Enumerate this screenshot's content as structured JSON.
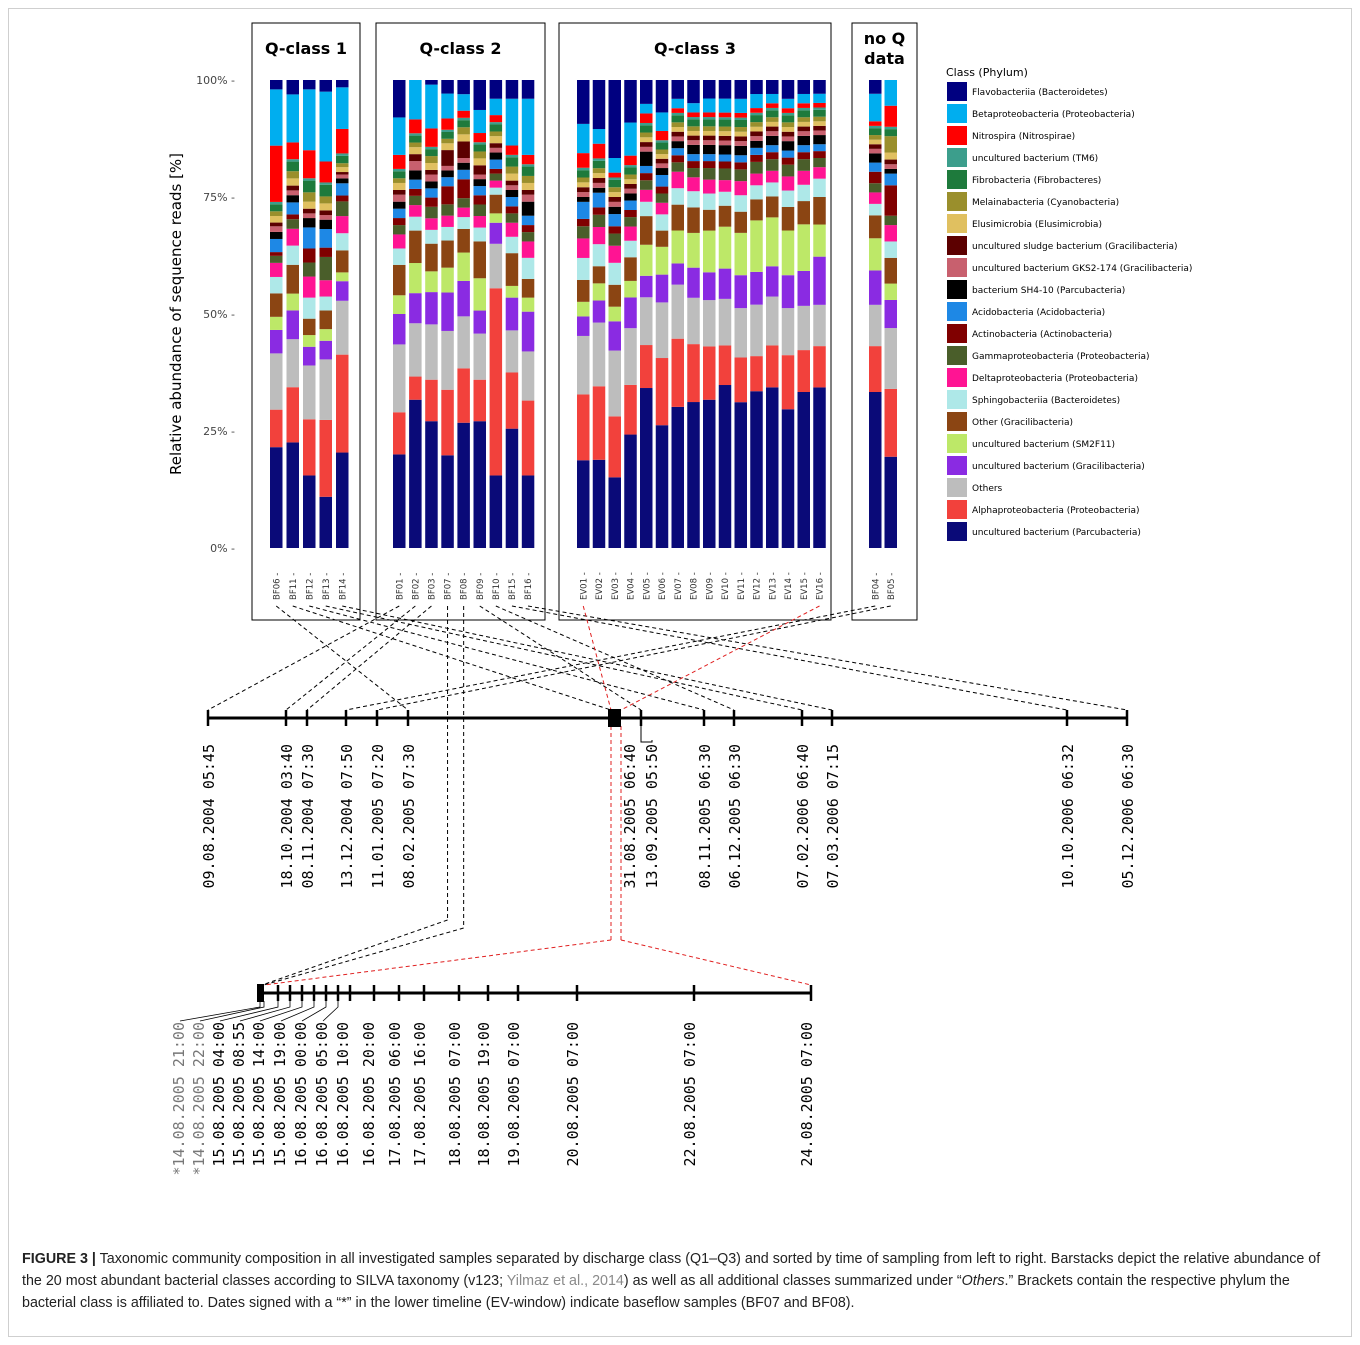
{
  "chart_data": {
    "type": "bar",
    "stacked": true,
    "ylabel": "Relative abundance of sequence reads [%]",
    "yticks": [
      "0%",
      "25%",
      "50%",
      "75%",
      "100%"
    ],
    "ylim": [
      0,
      100
    ],
    "legend_title": "Class (Phylum)",
    "legend_placement": "right",
    "panels": [
      {
        "title": "Q-class 1",
        "samples": [
          "BF06",
          "BF11",
          "BF12",
          "BF13",
          "BF14"
        ]
      },
      {
        "title": "Q-class 2",
        "samples": [
          "BF01",
          "BF02",
          "BF03",
          "BF07",
          "BF08",
          "BF09",
          "BF10",
          "BF15",
          "BF16"
        ]
      },
      {
        "title": "Q-class 3",
        "samples": [
          "EV01",
          "EV02",
          "EV03",
          "EV04",
          "EV05",
          "EV06",
          "EV07",
          "EV08",
          "EV09",
          "EV10",
          "EV11",
          "EV12",
          "EV13",
          "EV14",
          "EV15",
          "EV16"
        ]
      },
      {
        "title": "no Q data",
        "samples": [
          "BF04",
          "BF05"
        ]
      }
    ],
    "classes": [
      {
        "name": "uncultured bacterium (Parcubacteria)",
        "color": "#0a0a78"
      },
      {
        "name": "Alphaproteobacteria (Proteobacteria)",
        "color": "#f2413c"
      },
      {
        "name": "Others",
        "color": "#bdbdbd"
      },
      {
        "name": "uncultured bacterium (Gracilibacteria)",
        "color": "#8a2be2"
      },
      {
        "name": "uncultured bacterium (SM2F11)",
        "color": "#bde868"
      },
      {
        "name": "Other (Gracilibacteria)",
        "color": "#8b4513"
      },
      {
        "name": "Sphingobacteriia (Bacteroidetes)",
        "color": "#aee8e8"
      },
      {
        "name": "Deltaproteobacteria (Proteobacteria)",
        "color": "#ff1493"
      },
      {
        "name": "Gammaproteobacteria (Proteobacteria)",
        "color": "#4a5e2a"
      },
      {
        "name": "Actinobacteria (Actinobacteria)",
        "color": "#800000"
      },
      {
        "name": "Acidobacteria (Acidobacteria)",
        "color": "#1e88e5"
      },
      {
        "name": "bacterium SH4-10 (Parcubacteria)",
        "color": "#000000"
      },
      {
        "name": "uncultured bacterium GKS2-174 (Gracilibacteria)",
        "color": "#c8606e"
      },
      {
        "name": "uncultured sludge bacterium (Gracilibacteria)",
        "color": "#5c0000"
      },
      {
        "name": "Elusimicrobia (Elusimicrobia)",
        "color": "#e0c060"
      },
      {
        "name": "Melainabacteria (Cyanobacteria)",
        "color": "#9a8f2c"
      },
      {
        "name": "Fibrobacteria (Fibrobacteres)",
        "color": "#1e7a3c"
      },
      {
        "name": "uncultured bacterium (TM6)",
        "color": "#3c9e8c"
      },
      {
        "name": "Nitrospira (Nitrospirae)",
        "color": "#ff0000"
      },
      {
        "name": "Betaproteobacteria (Proteobacteria)",
        "color": "#00aeef"
      },
      {
        "name": "Flavobacteriia (Bacteroidetes)",
        "color": "#000080"
      }
    ],
    "series": {
      "BF06": [
        21.5,
        8,
        12,
        5,
        2.8,
        5,
        3.5,
        3,
        1.5,
        0.8,
        2.8,
        1.5,
        1.2,
        0.8,
        1.4,
        1,
        1.5,
        0.5,
        12,
        12,
        2
      ],
      "BF11": [
        22,
        11.5,
        10,
        6,
        3.5,
        6,
        4,
        3.5,
        2,
        1,
        2.5,
        1.5,
        1,
        1,
        1.5,
        1.5,
        2,
        0.5,
        3.5,
        10,
        3
      ],
      "BF12": [
        15.5,
        12,
        11.5,
        4,
        2.5,
        3.5,
        4.5,
        4.5,
        3,
        3,
        4.5,
        2,
        1,
        1,
        1.5,
        2,
        2.5,
        0.5,
        6,
        13,
        2
      ],
      "BF13": [
        11,
        16.5,
        13,
        4,
        2.5,
        4,
        3,
        3.5,
        5,
        2,
        4,
        2,
        1,
        1,
        1.5,
        1.5,
        2.5,
        0.5,
        4.5,
        15,
        2.5
      ],
      "BF14": [
        19.5,
        20,
        11,
        4,
        1.8,
        4.5,
        3.5,
        3.5,
        3,
        1.2,
        2.5,
        1,
        0.8,
        0.5,
        1,
        0.8,
        1.5,
        0.5,
        5,
        8.5,
        1.5
      ],
      "BF01": [
        20,
        9,
        14.5,
        6.5,
        4,
        6.5,
        3.5,
        3,
        2,
        1.5,
        2,
        1.5,
        1.5,
        1,
        1.5,
        1,
        1.5,
        0.5,
        3,
        8,
        8
      ],
      "BF02": [
        32,
        5,
        11.5,
        6.5,
        6.5,
        7,
        3,
        2.5,
        2,
        1.5,
        2,
        2,
        2,
        1.5,
        1.5,
        1,
        1.5,
        0.5,
        3,
        8.5,
        0
      ],
      "BF03": [
        27.5,
        9,
        12,
        7,
        4.5,
        6,
        3,
        2.5,
        2.5,
        2,
        2,
        1.5,
        1.5,
        1,
        1.5,
        1.5,
        1.5,
        0.5,
        4,
        9.5,
        1
      ],
      "BF07": [
        20.5,
        14.5,
        13,
        8.5,
        5.5,
        6,
        3,
        2.5,
        2.5,
        4,
        2,
        1.5,
        1,
        3.5,
        1.5,
        1,
        1.5,
        0.5,
        2.5,
        5.5,
        3
      ],
      "BF08": [
        26.5,
        11.5,
        11,
        7.5,
        6,
        5,
        2.5,
        2,
        2,
        4,
        2,
        1.5,
        1,
        3.5,
        1.5,
        1.5,
        1.5,
        0.5,
        1.5,
        3.5,
        3
      ],
      "BF09": [
        27.5,
        9,
        10,
        5,
        7,
        8,
        3,
        2.5,
        2.5,
        2,
        2,
        1.5,
        1,
        2,
        1.5,
        1.5,
        1.5,
        0.5,
        2,
        5,
        6.5
      ],
      "BF10": [
        15.5,
        40,
        9.5,
        4.5,
        2,
        4,
        1.5,
        1.5,
        1.5,
        1,
        2,
        1.5,
        1,
        1,
        1.5,
        1,
        1.5,
        0.5,
        1.5,
        3.5,
        4
      ],
      "BF15": [
        25.5,
        12,
        9,
        7,
        2.5,
        7,
        3.5,
        3,
        2,
        1.5,
        2,
        1.5,
        1,
        1,
        1.5,
        1.5,
        2,
        0.5,
        2,
        10,
        4
      ],
      "BF16": [
        15.5,
        16,
        10.5,
        8.5,
        3,
        4,
        4.5,
        3.5,
        2,
        1.5,
        2,
        3,
        1.5,
        1,
        1.5,
        1.5,
        2,
        0.5,
        2,
        12,
        4
      ],
      "EV01": [
        18,
        13.5,
        12,
        4,
        3,
        4.5,
        4.5,
        4,
        2.5,
        1.5,
        3.5,
        1,
        1,
        1,
        1,
        1,
        1.5,
        0.5,
        3,
        6,
        9
      ],
      "EV02": [
        18,
        15,
        13,
        4.5,
        3.5,
        3.5,
        4.5,
        3.5,
        2.5,
        1.5,
        3,
        1,
        1,
        1,
        1,
        1,
        1.5,
        0.5,
        3,
        3,
        10
      ],
      "EV03": [
        14.5,
        12.5,
        13.5,
        6,
        3,
        4.5,
        4.5,
        3.5,
        2.5,
        1.5,
        2.5,
        1.5,
        1,
        1,
        1,
        1,
        1.5,
        0.5,
        1,
        3,
        16
      ],
      "EV04": [
        24,
        10.5,
        12,
        6.5,
        3.5,
        5,
        3.5,
        3,
        2,
        1.5,
        2,
        1.5,
        1,
        1,
        1,
        1,
        1.5,
        0.5,
        2,
        7,
        9
      ],
      "EV05": [
        33.5,
        9,
        10,
        4.5,
        6.5,
        6,
        3,
        2.5,
        2,
        1.5,
        1.5,
        3,
        1,
        1,
        1,
        1,
        1.5,
        0.5,
        2,
        2,
        5
      ],
      "EV06": [
        26.5,
        14.5,
        12,
        6,
        6,
        3.5,
        3.5,
        2.5,
        2,
        1.5,
        2.5,
        1.5,
        1,
        1,
        1,
        1,
        1.5,
        0.5,
        2,
        4,
        7
      ],
      "EV07": [
        30,
        14.5,
        11.5,
        4.5,
        7,
        5.5,
        3.5,
        3.5,
        2,
        1.5,
        1.5,
        1.5,
        1,
        1,
        1,
        1,
        1.5,
        0.5,
        1,
        2,
        4
      ],
      "EV08": [
        31.5,
        12.5,
        10,
        6.5,
        7.5,
        5.5,
        3.5,
        3,
        2,
        1.5,
        1.5,
        2,
        1,
        1,
        1,
        1,
        1.5,
        0.5,
        1,
        2,
        5
      ],
      "EV09": [
        32,
        11.5,
        10,
        6,
        9,
        4.5,
        3.5,
        3,
        2.5,
        1.5,
        1.5,
        2,
        1,
        1,
        1,
        1,
        1.5,
        0.5,
        1,
        3,
        4
      ],
      "EV10": [
        35,
        8.5,
        10,
        6.5,
        9,
        4.5,
        3,
        2.5,
        2.5,
        1.5,
        1.5,
        2,
        1,
        1,
        1,
        1,
        1.5,
        0.5,
        1,
        3,
        4
      ],
      "EV11": [
        31,
        9.5,
        10.5,
        7,
        9,
        4.5,
        3.5,
        3,
        2.5,
        1.5,
        1.5,
        2,
        1,
        1,
        1,
        1,
        1.5,
        0.5,
        1,
        3,
        4
      ],
      "EV12": [
        33.5,
        7.5,
        11,
        7,
        11,
        4.5,
        3,
        2.5,
        2.5,
        1.5,
        1.5,
        1.5,
        1,
        1,
        1,
        1,
        1.5,
        0.5,
        1,
        3,
        3
      ],
      "EV13": [
        34.5,
        9,
        10.5,
        6.5,
        10.5,
        4.5,
        3,
        2.5,
        2.5,
        1.5,
        1.5,
        2,
        1,
        1,
        1,
        1,
        1.5,
        0.5,
        1,
        2,
        3
      ],
      "EV14": [
        29.5,
        11.5,
        10,
        7,
        9.5,
        5,
        3.5,
        3,
        2.5,
        1.5,
        1.5,
        2,
        1,
        1,
        1,
        1,
        1.5,
        0.5,
        1,
        2,
        4
      ],
      "EV15": [
        33.5,
        9,
        9.5,
        7.5,
        10,
        5,
        3.5,
        3,
        2.5,
        1.5,
        1.5,
        2,
        1,
        1,
        1,
        1,
        1.5,
        0.5,
        1,
        2,
        3
      ],
      "EV16": [
        35,
        9,
        9,
        10.5,
        7,
        6,
        4,
        2.5,
        2,
        1.5,
        1.5,
        2,
        1,
        1,
        1,
        1,
        1.5,
        0.5,
        1,
        2,
        3
      ],
      "BF04": [
        34,
        10,
        9,
        7.5,
        7,
        5,
        2.5,
        2.5,
        2,
        2.5,
        2,
        2,
        1,
        1,
        1,
        1,
        1.5,
        0.5,
        1,
        6,
        3
      ],
      "BF05": [
        19.5,
        14.5,
        13,
        6,
        3.5,
        5.5,
        3.5,
        3.5,
        2,
        6.5,
        2.5,
        1,
        1,
        1,
        1.5,
        3.5,
        1.5,
        0.5,
        4.5,
        5.5,
        0
      ]
    },
    "timeline_top": {
      "labels": [
        "09.08.2004  05:45",
        "18.10.2004  03:40",
        "08.11.2004  07:30",
        "13.12.2004  07:50",
        "11.01.2005  07:20",
        "08.02.2005  07:30",
        "31.08.2005  06:40",
        "13.09.2005  05:50",
        "08.11.2005  06:30",
        "06.12.2005  06:30",
        "07.02.2006  06:40",
        "07.03.2006  07:15",
        "10.10.2006  06:32",
        "05.12.2006  06:30"
      ]
    },
    "timeline_bottom": {
      "labels": [
        "*14.08.2005  21:00",
        "*14.08.2005  22:00",
        "15.08.2005  04:00",
        "15.08.2005  08:55",
        "15.08.2005  14:00",
        "15.08.2005  19:00",
        "16.08.2005  00:00",
        "16.08.2005  05:00",
        "16.08.2005  10:00",
        "16.08.2005  20:00",
        "17.08.2005  06:00",
        "17.08.2005  16:00",
        "18.08.2005  07:00",
        "18.08.2005  19:00",
        "19.08.2005  07:00",
        "20.08.2005  07:00",
        "22.08.2005  07:00",
        "24.08.2005  07:00"
      ]
    }
  },
  "caption": {
    "label": "FIGURE 3 |",
    "text_1": " Taxonomic community composition in all investigated samples separated by discharge class (Q1–Q3) and sorted by time of sampling from left to right. Barstacks depict the relative abundance of the 20 most abundant bacterial classes according to SILVA taxonomy (v123; ",
    "ref": "Yilmaz et al., 2014",
    "text_2": ") as well as all additional classes summarized under “",
    "others": "Others",
    "text_3": ".” Brackets contain the respective phylum the bacterial class is affiliated to. Dates signed with a “*” in the lower timeline (EV-window) indicate baseflow samples (BF07 and BF08)."
  }
}
